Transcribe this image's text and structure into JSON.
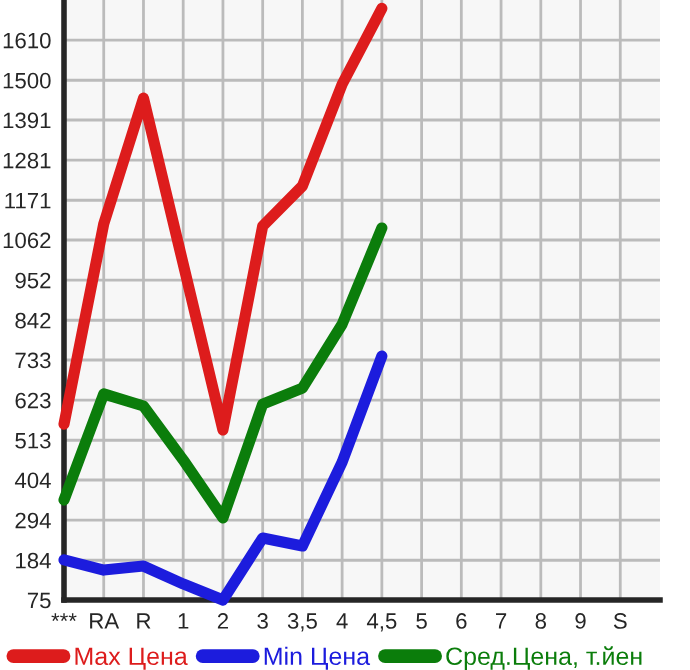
{
  "chart_data": {
    "type": "line",
    "categories": [
      "***",
      "RA",
      "R",
      "1",
      "2",
      "3",
      "3,5",
      "4",
      "4,5",
      "5",
      "6",
      "7",
      "8",
      "9",
      "S"
    ],
    "series": [
      {
        "name": "Max Цена",
        "color": "#dd1c1c",
        "values": [
          557,
          1106,
          1451,
          996,
          541,
          1100,
          1210,
          1489,
          1697,
          null,
          null,
          null,
          null,
          null,
          null
        ]
      },
      {
        "name": "Min Цена",
        "color": "#1c1cdd",
        "values": [
          185,
          157,
          168,
          119,
          75,
          245,
          223,
          453,
          744,
          null,
          null,
          null,
          null,
          null,
          null
        ]
      },
      {
        "name": "Сред.Цена, т.йен",
        "color": "#0b7d0b",
        "values": [
          349,
          640,
          607,
          459,
          300,
          612,
          656,
          831,
          1095,
          null,
          null,
          null,
          null,
          null,
          null
        ]
      }
    ],
    "ylim": [
      75,
      1720
    ],
    "yticks": [
      75,
      184,
      294,
      404,
      513,
      623,
      733,
      842,
      952,
      1062,
      1171,
      1281,
      1391,
      1500,
      1610
    ],
    "grid": true,
    "legend": "bottom",
    "marker": "none",
    "line_style": "solid"
  }
}
